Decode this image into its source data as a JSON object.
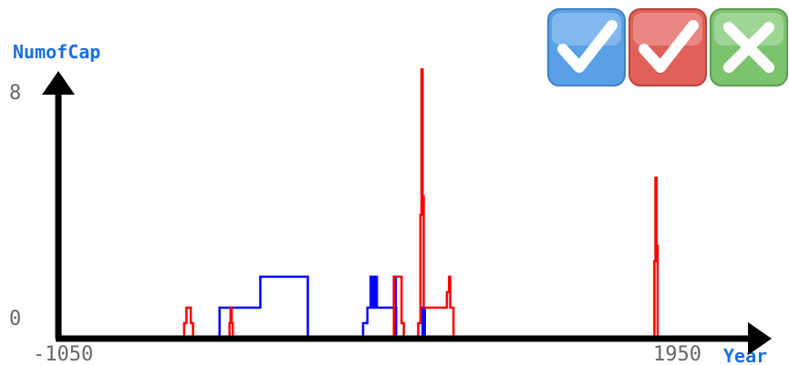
{
  "chart_data": {
    "type": "line",
    "xlabel": "Year",
    "ylabel": "NumofCap",
    "xlim": [
      -1050,
      1950
    ],
    "ylim": [
      0,
      8
    ],
    "x_tick_labels": [
      "-1050",
      "1950"
    ],
    "y_tick_labels": [
      "0",
      "8"
    ],
    "grid": false,
    "legend": "none",
    "series": [
      {
        "color": "#0000ff",
        "values": [
          [
            -1050,
            0
          ],
          [
            -320,
            0
          ],
          [
            -320,
            1
          ],
          [
            -135,
            1
          ],
          [
            -135,
            2
          ],
          [
            80,
            2
          ],
          [
            80,
            0
          ],
          [
            330,
            0
          ],
          [
            330,
            0.5
          ],
          [
            350,
            0.5
          ],
          [
            350,
            1
          ],
          [
            365,
            1
          ],
          [
            365,
            2
          ],
          [
            375,
            2
          ],
          [
            375,
            1
          ],
          [
            383,
            1
          ],
          [
            383,
            2
          ],
          [
            393,
            2
          ],
          [
            393,
            1
          ],
          [
            470,
            1
          ],
          [
            470,
            2
          ],
          [
            478,
            2
          ],
          [
            478,
            1
          ],
          [
            480,
            1
          ],
          [
            480,
            0
          ],
          [
            600,
            0
          ],
          [
            600,
            1
          ],
          [
            610,
            1
          ],
          [
            610,
            0
          ],
          [
            1950,
            0
          ]
        ]
      },
      {
        "color": "#ff0000",
        "values": [
          [
            -1050,
            0
          ],
          [
            -480,
            0
          ],
          [
            -480,
            0.5
          ],
          [
            -470,
            0.5
          ],
          [
            -470,
            1
          ],
          [
            -450,
            1
          ],
          [
            -450,
            0.5
          ],
          [
            -440,
            0.5
          ],
          [
            -440,
            0
          ],
          [
            -275,
            0
          ],
          [
            -275,
            0.5
          ],
          [
            -270,
            0.5
          ],
          [
            -270,
            1
          ],
          [
            -265,
            1
          ],
          [
            -265,
            0.5
          ],
          [
            -260,
            0.5
          ],
          [
            -260,
            0
          ],
          [
            470,
            0
          ],
          [
            470,
            2
          ],
          [
            505,
            2
          ],
          [
            505,
            0.5
          ],
          [
            515,
            0.5
          ],
          [
            515,
            0
          ],
          [
            580,
            0
          ],
          [
            580,
            0.5
          ],
          [
            590,
            0.5
          ],
          [
            590,
            4
          ],
          [
            595,
            4
          ],
          [
            595,
            8.7
          ],
          [
            600,
            8.7
          ],
          [
            600,
            4.6
          ],
          [
            605,
            4.6
          ],
          [
            605,
            1
          ],
          [
            710,
            1
          ],
          [
            710,
            1.5
          ],
          [
            720,
            1.5
          ],
          [
            720,
            2
          ],
          [
            725,
            2
          ],
          [
            725,
            1
          ],
          [
            740,
            1
          ],
          [
            740,
            0
          ],
          [
            1650,
            0
          ],
          [
            1650,
            2.5
          ],
          [
            1655,
            2.5
          ],
          [
            1655,
            5.2
          ],
          [
            1660,
            5.2
          ],
          [
            1660,
            3
          ],
          [
            1665,
            3
          ],
          [
            1665,
            0
          ],
          [
            1950,
            0
          ]
        ]
      }
    ]
  },
  "toolbar": {
    "accept_blue_icon": "checkmark-icon",
    "accept_red_icon": "checkmark-icon",
    "reject_icon": "x-mark-icon",
    "blue_color": "#5aa0e6",
    "red_color": "#e0605a",
    "green_color": "#7cc36e"
  }
}
